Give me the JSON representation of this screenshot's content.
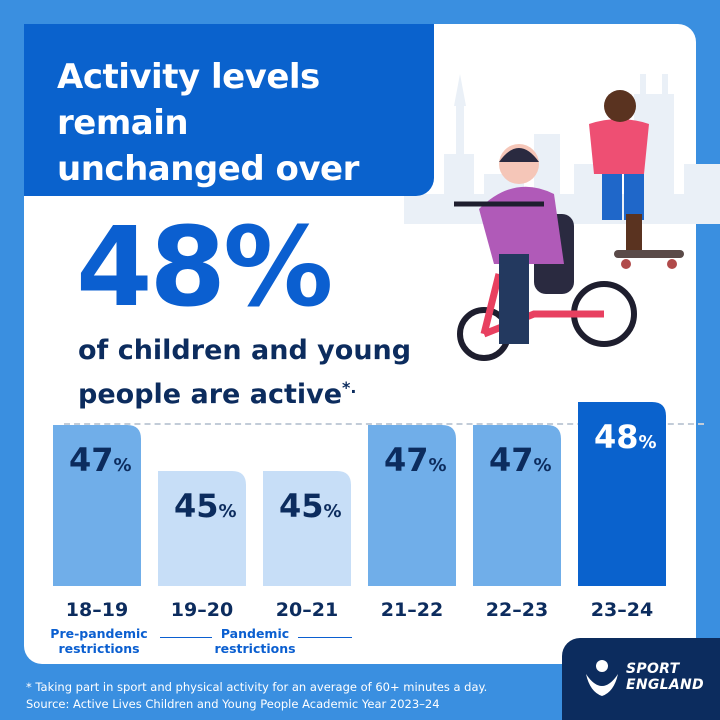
{
  "header": {
    "title": "Activity levels remain\nunchanged over the\nlast two years"
  },
  "headline": {
    "value": "48%",
    "text": "of children and young\npeople are active",
    "mark": "*."
  },
  "chart_data": {
    "type": "bar",
    "categories": [
      "18–19",
      "19–20",
      "20–21",
      "21–22",
      "22–23",
      "23–24"
    ],
    "values": [
      47,
      45,
      45,
      47,
      47,
      48
    ],
    "unit": "%",
    "highlight_index": 5,
    "colors": [
      "#70aee9",
      "#c7def7",
      "#c7def7",
      "#70aee9",
      "#70aee9",
      "#0a62cd"
    ],
    "groups": [
      {
        "label": "Pre-pandemic\nrestrictions",
        "categories": [
          "18–19"
        ]
      },
      {
        "label": "Pandemic\nrestrictions",
        "categories": [
          "19–20",
          "20–21"
        ]
      }
    ],
    "title": "",
    "xlabel": "",
    "ylabel": ""
  },
  "footnote": {
    "line1": "*  Taking part in sport and physical activity for an average of 60+ minutes a day.",
    "line2": "Source: Active Lives Children and Young People Academic Year 2023–24"
  },
  "logo": {
    "line1": "SPORT",
    "line2": "ENGLAND"
  },
  "colors": {
    "background": "#3a8fe0",
    "title_box": "#0a62cd",
    "navy": "#0c2c5e",
    "accent": "#0b5fd0"
  },
  "illustration": {
    "icons": [
      "city-skyline-icon",
      "child-on-adaptive-tricycle-icon",
      "boy-on-skateboard-icon"
    ]
  }
}
